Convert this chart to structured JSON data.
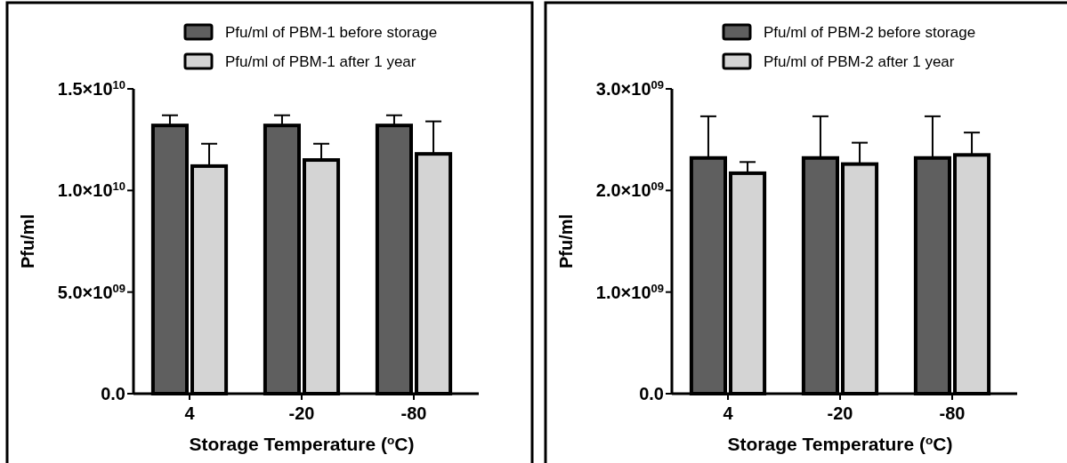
{
  "chart_data": [
    {
      "type": "bar",
      "categories": [
        "4",
        "-20",
        "-80"
      ],
      "xlabel": "Storage Temperature ($^{o}$C)",
      "ylabel": "Pfu/ml",
      "ylim": [
        0,
        15000000000
      ],
      "yticks": [
        {
          "value": 0,
          "label": "0.0"
        },
        {
          "value": 5000000000,
          "label": "5.0×10$^{09}$"
        },
        {
          "value": 10000000000,
          "label": "1.0×10$^{10}$"
        },
        {
          "value": 15000000000,
          "label": "1.5×10$^{10}$"
        }
      ],
      "legend": "top",
      "grid": false,
      "series": [
        {
          "name": "Pfu/ml of PBM-1 before storage",
          "color": "#5f5f5f",
          "values": [
            13200000000,
            13200000000,
            13200000000
          ],
          "errors": [
            500000000,
            500000000,
            500000000
          ]
        },
        {
          "name": "Pfu/ml of PBM-1 after 1 year",
          "color": "#d4d4d4",
          "values": [
            11200000000,
            11500000000,
            11800000000
          ],
          "errors": [
            1100000000,
            800000000,
            1600000000
          ]
        }
      ]
    },
    {
      "type": "bar",
      "categories": [
        "4",
        "-20",
        "-80"
      ],
      "xlabel": "Storage Temperature ($^{o}$C)",
      "ylabel": "Pfu/ml",
      "ylim": [
        0,
        3000000000
      ],
      "yticks": [
        {
          "value": 0,
          "label": "0.0"
        },
        {
          "value": 1000000000,
          "label": "1.0×10$^{09}$"
        },
        {
          "value": 2000000000,
          "label": "2.0×10$^{09}$"
        },
        {
          "value": 3000000000,
          "label": "3.0×10$^{09}$"
        }
      ],
      "legend": "top",
      "grid": false,
      "series": [
        {
          "name": "Pfu/ml of PBM-2 before storage",
          "color": "#5f5f5f",
          "values": [
            2320000000,
            2320000000,
            2320000000
          ],
          "errors": [
            410000000,
            410000000,
            410000000
          ]
        },
        {
          "name": "Pfu/ml of PBM-2 after 1 year",
          "color": "#d4d4d4",
          "values": [
            2170000000,
            2260000000,
            2350000000
          ],
          "errors": [
            110000000,
            210000000,
            220000000
          ]
        }
      ]
    }
  ]
}
